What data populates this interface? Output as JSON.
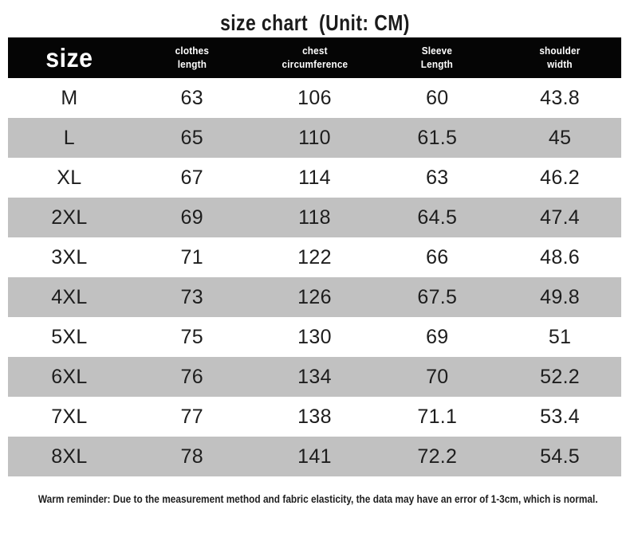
{
  "title": {
    "main": "size chart",
    "unit": "(Unit: CM)"
  },
  "table": {
    "header": {
      "size_label": "size",
      "columns": [
        {
          "line1": "clothes",
          "line2": "length"
        },
        {
          "line1": "chest",
          "line2": "circumference"
        },
        {
          "line1": "Sleeve",
          "line2": "Length"
        },
        {
          "line1": "shoulder",
          "line2": "width"
        }
      ]
    },
    "rows": [
      {
        "size": "M",
        "clothes_length": "63",
        "chest_circumference": "106",
        "sleeve_length": "60",
        "shoulder_width": "43.8"
      },
      {
        "size": "L",
        "clothes_length": "65",
        "chest_circumference": "110",
        "sleeve_length": "61.5",
        "shoulder_width": "45"
      },
      {
        "size": "XL",
        "clothes_length": "67",
        "chest_circumference": "114",
        "sleeve_length": "63",
        "shoulder_width": "46.2"
      },
      {
        "size": "2XL",
        "clothes_length": "69",
        "chest_circumference": "118",
        "sleeve_length": "64.5",
        "shoulder_width": "47.4"
      },
      {
        "size": "3XL",
        "clothes_length": "71",
        "chest_circumference": "122",
        "sleeve_length": "66",
        "shoulder_width": "48.6"
      },
      {
        "size": "4XL",
        "clothes_length": "73",
        "chest_circumference": "126",
        "sleeve_length": "67.5",
        "shoulder_width": "49.8"
      },
      {
        "size": "5XL",
        "clothes_length": "75",
        "chest_circumference": "130",
        "sleeve_length": "69",
        "shoulder_width": "51"
      },
      {
        "size": "6XL",
        "clothes_length": "76",
        "chest_circumference": "134",
        "sleeve_length": "70",
        "shoulder_width": "52.2"
      },
      {
        "size": "7XL",
        "clothes_length": "77",
        "chest_circumference": "138",
        "sleeve_length": "71.1",
        "shoulder_width": "53.4"
      },
      {
        "size": "8XL",
        "clothes_length": "78",
        "chest_circumference": "141",
        "sleeve_length": "72.2",
        "shoulder_width": "54.5"
      }
    ]
  },
  "footer": {
    "note": "Warm reminder: Due to the measurement method and fabric elasticity, the data may have an error of 1-3cm, which is normal."
  },
  "colors": {
    "header_bg": "#050505",
    "header_text": "#ffffff",
    "row_bg": "#ffffff",
    "row_alt_bg": "#c1c1c1",
    "body_text": "#1d1d1d",
    "title_text": "#1b1b1b"
  },
  "chart_data": {
    "type": "table",
    "title": "size chart",
    "subtitle": "(Unit: CM)",
    "unit": "CM",
    "columns": [
      "size",
      "clothes length",
      "chest circumference",
      "Sleeve Length",
      "shoulder width"
    ],
    "rows": [
      [
        "M",
        63,
        106,
        60,
        43.8
      ],
      [
        "L",
        65,
        110,
        61.5,
        45
      ],
      [
        "XL",
        67,
        114,
        63,
        46.2
      ],
      [
        "2XL",
        69,
        118,
        64.5,
        47.4
      ],
      [
        "3XL",
        71,
        122,
        66,
        48.6
      ],
      [
        "4XL",
        73,
        126,
        67.5,
        49.8
      ],
      [
        "5XL",
        75,
        130,
        69,
        51
      ],
      [
        "6XL",
        76,
        134,
        70,
        52.2
      ],
      [
        "7XL",
        77,
        138,
        71.1,
        53.4
      ],
      [
        "8XL",
        78,
        141,
        72.2,
        54.5
      ]
    ],
    "layout_hints": {
      "alternating_row_shading": true,
      "header_style": "black-bar"
    },
    "note": "Warm reminder: Due to the measurement method and fabric elasticity, the data may have an error of 1-3cm, which is normal."
  }
}
